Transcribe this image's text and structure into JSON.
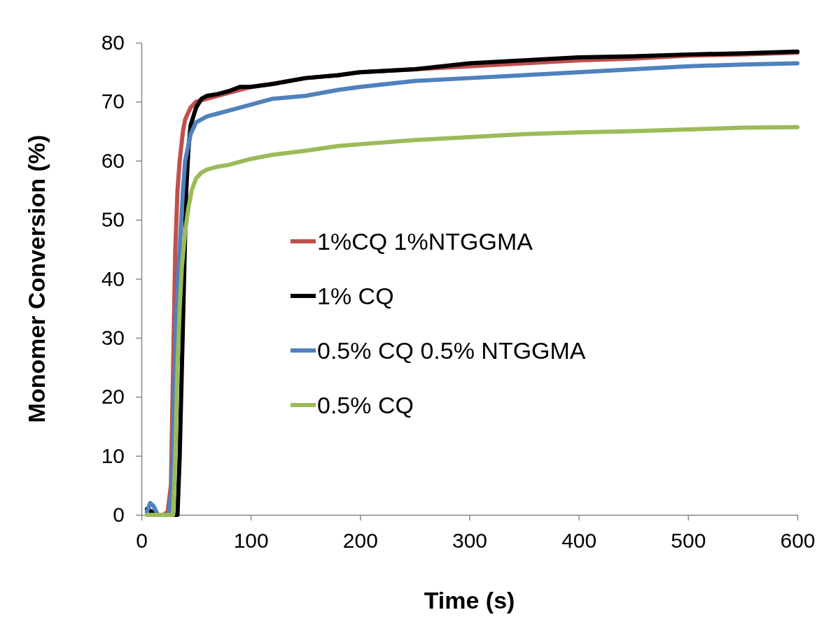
{
  "chart_data": {
    "type": "line",
    "xlabel": "Time (s)",
    "ylabel": "Monomer Conversion (%)",
    "xlim": [
      0,
      600
    ],
    "xticks": [
      0,
      100,
      200,
      300,
      400,
      500,
      600
    ],
    "ylim": [
      0,
      80
    ],
    "yticks": [
      0,
      10,
      20,
      30,
      40,
      50,
      60,
      70,
      80
    ],
    "grid": false,
    "legend": "right",
    "marker": "none",
    "line_style": "solid",
    "series": [
      {
        "name": "1%CQ 1%NTGGMA",
        "color": "#c0504d",
        "x": [
          15,
          20,
          24,
          27,
          29,
          31,
          33,
          35,
          38,
          40,
          45,
          50,
          60,
          70,
          80,
          100,
          120,
          150,
          180,
          200,
          250,
          300,
          350,
          400,
          450,
          500,
          550,
          600
        ],
        "values": [
          0,
          0,
          0.5,
          5,
          25,
          45,
          55,
          60,
          65,
          67,
          69,
          70,
          70.5,
          71,
          71.5,
          72.5,
          73,
          74,
          74.5,
          75,
          75.5,
          76,
          76.5,
          77,
          77.3,
          77.8,
          78,
          78.3
        ]
      },
      {
        "name": "1% CQ",
        "color": "#000000",
        "x": [
          5,
          10,
          15,
          20,
          25,
          30,
          33,
          35,
          37,
          39,
          41,
          43,
          45,
          50,
          55,
          60,
          70,
          80,
          90,
          100,
          120,
          150,
          180,
          200,
          250,
          300,
          350,
          400,
          450,
          500,
          550,
          600
        ],
        "values": [
          1,
          0.5,
          0,
          0,
          0,
          0,
          0,
          10,
          25,
          40,
          55,
          62,
          66,
          69,
          70.5,
          71,
          71.3,
          71.8,
          72.5,
          72.5,
          73,
          74,
          74.5,
          75,
          75.5,
          76.5,
          77,
          77.5,
          77.7,
          78,
          78.2,
          78.5
        ]
      },
      {
        "name": "0.5% CQ 0.5% NTGGMA",
        "color": "#4f81bd",
        "x": [
          5,
          8,
          11,
          15,
          20,
          25,
          28,
          30,
          32,
          35,
          38,
          40,
          45,
          50,
          60,
          70,
          80,
          90,
          100,
          120,
          150,
          180,
          200,
          250,
          300,
          350,
          400,
          450,
          500,
          550,
          600
        ],
        "values": [
          0.5,
          2,
          1.5,
          0,
          0,
          0,
          5,
          20,
          35,
          45,
          55,
          60,
          64.5,
          66.5,
          67.5,
          68,
          68.5,
          69,
          69.5,
          70.5,
          71,
          72,
          72.5,
          73.5,
          74,
          74.5,
          75,
          75.5,
          76,
          76.3,
          76.5
        ]
      },
      {
        "name": "0.5% CQ",
        "color": "#9bbb59",
        "x": [
          5,
          10,
          15,
          20,
          25,
          29,
          31,
          33,
          35,
          37,
          40,
          43,
          46,
          50,
          55,
          60,
          70,
          80,
          90,
          100,
          120,
          150,
          180,
          200,
          250,
          300,
          350,
          400,
          450,
          500,
          550,
          600
        ],
        "values": [
          0,
          0,
          0,
          0,
          0,
          0,
          10,
          25,
          35,
          42,
          48,
          52,
          55,
          57,
          58,
          58.5,
          59,
          59.3,
          59.8,
          60.3,
          61,
          61.7,
          62.5,
          62.8,
          63.5,
          64,
          64.5,
          64.8,
          65,
          65.3,
          65.6,
          65.7
        ]
      }
    ]
  }
}
